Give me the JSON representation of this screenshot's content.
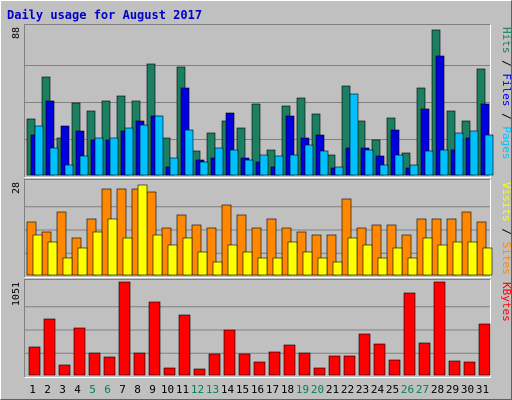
{
  "chart_data": {
    "type": "bar",
    "title": "Daily usage for August 2017",
    "days": [
      "1",
      "2",
      "3",
      "4",
      "5",
      "6",
      "7",
      "8",
      "9",
      "10",
      "11",
      "12",
      "13",
      "14",
      "15",
      "16",
      "17",
      "18",
      "19",
      "20",
      "21",
      "22",
      "23",
      "24",
      "25",
      "26",
      "27",
      "28",
      "29",
      "30",
      "31"
    ],
    "weekend_days": [
      "5",
      "6",
      "12",
      "13",
      "19",
      "20",
      "26",
      "27"
    ],
    "colors": {
      "title": "#0000cc",
      "hits": "#1c7f62",
      "files": "#0000e0",
      "pages": "#00c0ff",
      "visits": "#ff8800",
      "sites": "#ffff00",
      "kbytes": "#ff0000",
      "plot_bg": "#c0c0c0",
      "weekend_label": "#00805a",
      "weekday_label": "#000000",
      "legend_slash": "#000000"
    },
    "panels": [
      {
        "name": "hits-files-pages",
        "ymax": 88,
        "ymax_label": "88",
        "legend": [
          {
            "text": "Pages",
            "color": "#00c0ff"
          },
          {
            "text": "Files",
            "color": "#0000e0"
          },
          {
            "text": "Hits",
            "color": "#1c7f62"
          }
        ],
        "series": [
          {
            "name": "Hits",
            "color": "#1c7f62",
            "values": [
              33,
              58,
              22,
              43,
              38,
              44,
              47,
              44,
              66,
              22,
              64,
              14,
              25,
              32,
              28,
              42,
              15,
              41,
              46,
              36,
              12,
              53,
              32,
              21,
              34,
              13,
              52,
              86,
              38,
              32,
              63
            ]
          },
          {
            "name": "Files",
            "color": "#0000e0",
            "values": [
              24,
              44,
              29,
              26,
              21,
              21,
              26,
              32,
              35,
              5,
              52,
              9,
              10,
              37,
              10,
              8,
              5,
              35,
              22,
              24,
              4,
              16,
              16,
              11,
              27,
              4,
              39,
              71,
              15,
              22,
              42
            ]
          },
          {
            "name": "Pages",
            "color": "#00c0ff",
            "values": [
              29,
              16,
              6,
              11,
              22,
              22,
              28,
              30,
              35,
              10,
              27,
              8,
              16,
              15,
              9,
              12,
              11,
              12,
              18,
              14,
              5,
              48,
              15,
              6,
              12,
              6,
              14,
              15,
              25,
              26,
              24
            ]
          }
        ]
      },
      {
        "name": "visits-sites",
        "ymax": 28,
        "ymax_label": "28",
        "legend": [
          {
            "text": "Sites",
            "color": "#ff8800"
          },
          {
            "text": "Visits",
            "color": "#ffff00"
          }
        ],
        "series": [
          {
            "name": "Visits",
            "color": "#ff8800",
            "values": [
              16,
              13,
              19,
              11,
              17,
              26,
              26,
              26,
              25,
              14,
              18,
              15,
              14,
              21,
              18,
              14,
              17,
              14,
              13,
              12,
              12,
              23,
              14,
              15,
              15,
              12,
              17,
              17,
              17,
              19,
              16
            ]
          },
          {
            "name": "Sites",
            "color": "#ffff00",
            "values": [
              12,
              10,
              5,
              8,
              13,
              17,
              11,
              27,
              12,
              9,
              11,
              7,
              4,
              9,
              7,
              5,
              5,
              10,
              7,
              5,
              4,
              11,
              9,
              5,
              8,
              5,
              11,
              9,
              10,
              10,
              8
            ]
          }
        ]
      },
      {
        "name": "kbytes",
        "ymax": 1051,
        "ymax_label": "1051",
        "legend": [
          {
            "text": "KBytes",
            "color": "#ff0000"
          }
        ],
        "series": [
          {
            "name": "KBytes",
            "color": "#ff0000",
            "values": [
              321,
              637,
              113,
              531,
              244,
              203,
              1051,
              254,
              830,
              79,
              679,
              66,
              233,
              509,
              240,
              152,
              258,
              341,
              249,
              75,
              214,
              219,
              464,
              349,
              168,
              924,
              367,
              1051,
              158,
              148,
              574
            ]
          }
        ]
      }
    ]
  }
}
